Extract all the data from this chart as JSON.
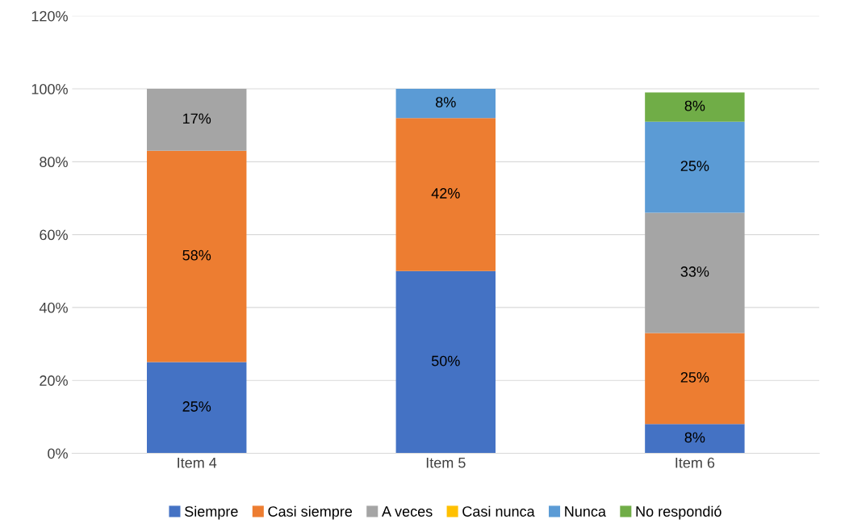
{
  "chart_data": {
    "type": "bar",
    "stacked": true,
    "categories": [
      "Item 4",
      "Item 5",
      "Item 6"
    ],
    "series": [
      {
        "name": "Siempre",
        "color": "#4472c4",
        "values": [
          25,
          50,
          8
        ],
        "value_labels": [
          "25%",
          "50%",
          "8%"
        ]
      },
      {
        "name": "Casi siempre",
        "color": "#ed7d31",
        "values": [
          58,
          42,
          25
        ],
        "value_labels": [
          "58%",
          "42%",
          "25%"
        ]
      },
      {
        "name": "A veces",
        "color": "#a5a5a5",
        "values": [
          17,
          null,
          33
        ],
        "value_labels": [
          "17%",
          null,
          "33%"
        ]
      },
      {
        "name": "Casi nunca",
        "color": "#ffc000",
        "values": [
          null,
          null,
          null
        ],
        "value_labels": [
          null,
          null,
          null
        ]
      },
      {
        "name": "Nunca",
        "color": "#5b9bd5",
        "values": [
          null,
          8,
          25
        ],
        "value_labels": [
          null,
          "8%",
          "25%"
        ]
      },
      {
        "name": "No respondió",
        "color": "#70ad47",
        "values": [
          null,
          null,
          8
        ],
        "value_labels": [
          null,
          null,
          "8%"
        ]
      }
    ],
    "ylim": [
      0,
      120
    ],
    "yticks": [
      {
        "value": 0,
        "label": "0%"
      },
      {
        "value": 20,
        "label": "20%"
      },
      {
        "value": 40,
        "label": "40%"
      },
      {
        "value": 60,
        "label": "60%"
      },
      {
        "value": 80,
        "label": "80%"
      },
      {
        "value": 100,
        "label": "100%"
      },
      {
        "value": 120,
        "label": "120%"
      }
    ],
    "grid": "y",
    "legend": "bottom"
  }
}
